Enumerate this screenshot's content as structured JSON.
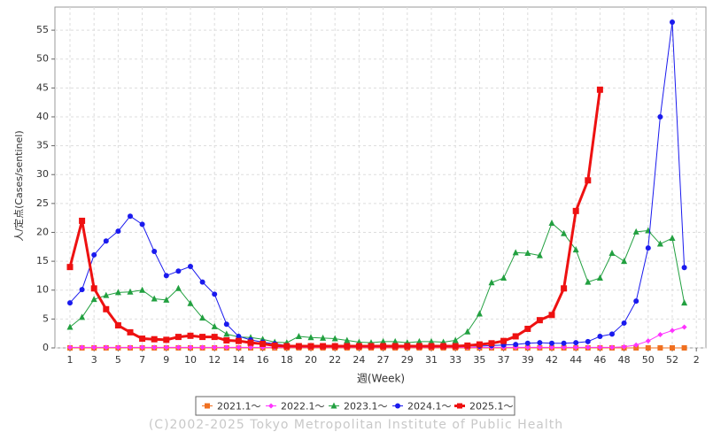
{
  "chart_data": {
    "type": "line",
    "x_label": "週(Week)",
    "y_label": "人/定点(Cases/sentinel)",
    "footer": "(C)2002-2025 Tokyo Metropolitan Institute of Public Health",
    "categories": [
      "1",
      null,
      "3",
      null,
      "5",
      null,
      "7",
      null,
      "9",
      null,
      "10",
      null,
      "12",
      null,
      "14",
      null,
      "16",
      null,
      "18",
      null,
      "20",
      null,
      "22",
      null,
      "24",
      null,
      "27",
      null,
      "29",
      null,
      "31",
      null,
      "33",
      null,
      "35",
      null,
      "37",
      null,
      "39",
      null,
      "42",
      null,
      "44",
      null,
      "46",
      null,
      "48",
      null,
      "50",
      null,
      "52",
      null,
      "2"
    ],
    "ylim": [
      0,
      59
    ],
    "yticks": [
      0,
      5,
      10,
      15,
      20,
      25,
      30,
      35,
      40,
      45,
      50,
      55
    ],
    "grid": true,
    "legend": "bottom",
    "series": [
      {
        "name": "2021.1～",
        "color": "#f07020",
        "marker": "square",
        "line_width": 1,
        "values": [
          0,
          0,
          0,
          0,
          0,
          0,
          0,
          0,
          0,
          0,
          0,
          0,
          0,
          0,
          0,
          0,
          0,
          0,
          0,
          0,
          0,
          0,
          0,
          0,
          0,
          0,
          0,
          0,
          0,
          0,
          0,
          0,
          0,
          0,
          0,
          0,
          0,
          0,
          0,
          0,
          0,
          0,
          0,
          0,
          0,
          0,
          0,
          0,
          0,
          0,
          0,
          0,
          null
        ]
      },
      {
        "name": "2022.1～",
        "color": "#ff33ff",
        "marker": "diamond",
        "line_width": 1,
        "values": [
          0.1,
          0.1,
          0.1,
          0.1,
          0.1,
          0.1,
          0.1,
          0.1,
          0.1,
          0.1,
          0.1,
          0.1,
          0.1,
          0.1,
          0.1,
          0.1,
          0.1,
          0.1,
          0.1,
          0.1,
          0.1,
          0.1,
          0.1,
          0.1,
          0.1,
          0.1,
          0.1,
          0.1,
          0.1,
          0.1,
          0.1,
          0.1,
          0.1,
          0.1,
          0.1,
          0.1,
          0.1,
          0.1,
          0.1,
          0.1,
          0.1,
          0.1,
          0.1,
          0.1,
          0.1,
          0.1,
          0.2,
          0.5,
          1.2,
          2.3,
          3.0,
          3.6,
          null
        ]
      },
      {
        "name": "2023.1～",
        "color": "#22a040",
        "marker": "triangle",
        "line_width": 1,
        "values": [
          3.6,
          5.3,
          8.4,
          9.1,
          9.6,
          9.7,
          10.0,
          8.5,
          8.3,
          10.3,
          7.7,
          5.2,
          3.7,
          2.4,
          1.9,
          1.8,
          1.5,
          1.0,
          0.9,
          2.0,
          1.8,
          1.7,
          1.6,
          1.3,
          1.0,
          0.9,
          1.1,
          1.1,
          0.9,
          1.1,
          1.1,
          1.0,
          1.3,
          2.8,
          5.9,
          11.3,
          12.1,
          16.5,
          16.4,
          16.0,
          21.6,
          19.8,
          17.0,
          11.4,
          12.1,
          16.4,
          15.0,
          20.1,
          20.3,
          18.0,
          19.0,
          7.8,
          null
        ]
      },
      {
        "name": "2024.1～",
        "color": "#1a1aee",
        "marker": "circle",
        "line_width": 1,
        "values": [
          7.8,
          10.1,
          16.1,
          18.5,
          20.2,
          22.8,
          21.4,
          16.7,
          12.5,
          13.3,
          14.1,
          11.4,
          9.3,
          4.1,
          2.0,
          1.4,
          1.0,
          0.7,
          0.4,
          0.3,
          0.3,
          0.3,
          0.3,
          0.3,
          0.3,
          0.3,
          0.3,
          0.3,
          0.3,
          0.3,
          0.3,
          0.3,
          0.3,
          0.3,
          0.3,
          0.4,
          0.5,
          0.6,
          0.8,
          0.9,
          0.8,
          0.8,
          0.9,
          1.1,
          2.0,
          2.4,
          4.3,
          8.1,
          17.3,
          40,
          56.4,
          13.9,
          null
        ]
      },
      {
        "name": "2025.1～",
        "color": "#ee1111",
        "marker": "square",
        "line_width": 3,
        "values": [
          14,
          22,
          10.3,
          6.7,
          3.9,
          2.7,
          1.6,
          1.5,
          1.4,
          1.9,
          2.1,
          1.9,
          1.9,
          1.3,
          1.2,
          0.9,
          0.7,
          0.4,
          0.3,
          0.3,
          0.3,
          0.3,
          0.3,
          0.3,
          0.3,
          0.3,
          0.3,
          0.3,
          0.3,
          0.3,
          0.3,
          0.3,
          0.3,
          0.4,
          0.6,
          0.8,
          1.2,
          2.0,
          3.3,
          4.8,
          5.7,
          10.3,
          23.7,
          29,
          44.7,
          null,
          null,
          null,
          null,
          null,
          null,
          null,
          null
        ]
      }
    ]
  }
}
